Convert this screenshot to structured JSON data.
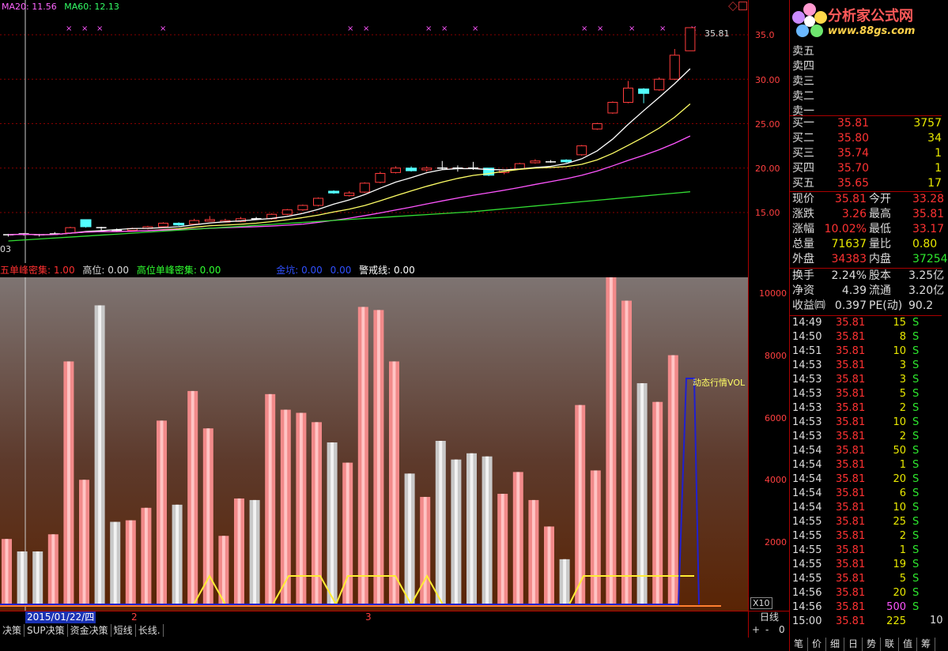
{
  "main_chart": {
    "ma_labels": [
      {
        "text": "MA20: 11.56",
        "color": "#ff66ff"
      },
      {
        "text": "MA60: 12.13",
        "color": "#33ff66"
      }
    ],
    "last_price_label": "35.81",
    "left_edge_label": "03",
    "price_axis": [
      "35.0",
      "30.00",
      "25.00",
      "20.00",
      "15.00"
    ],
    "marker_glyph": "×"
  },
  "indicator_header": [
    {
      "text": "五单峰密集: 1.00",
      "color": "#ff3030"
    },
    {
      "text": "高位: 0.00",
      "color": "#dddddd"
    },
    {
      "text": "高位单峰密集: 0.00",
      "color": "#30ff30"
    },
    {
      "text": "金坑: 0.00",
      "color": "#3050ff"
    },
    {
      "text": "0.00",
      "color": "#3050ff"
    },
    {
      "text": "警戒线: 0.00",
      "color": "#ffffff"
    }
  ],
  "volume_chart": {
    "label": "动态行情VOL",
    "axis": [
      "10000",
      "8000",
      "6000",
      "4000",
      "2000"
    ],
    "multiplier": "X10"
  },
  "chart_data": {
    "type": "bar",
    "title": "动态行情VOL",
    "ylim": [
      0,
      10500
    ],
    "values": [
      2100,
      1700,
      1700,
      2250,
      7800,
      4000,
      9600,
      2650,
      2700,
      3100,
      5900,
      3200,
      6850,
      5650,
      2200,
      3400,
      3350,
      6750,
      6250,
      6150,
      5850,
      5200,
      4550,
      9550,
      9450,
      7800,
      4200,
      3450,
      5250,
      4650,
      4850,
      4750,
      3550,
      4250,
      3350,
      2500,
      1450,
      6400,
      4300,
      10500,
      9750,
      7100,
      6500,
      8000
    ],
    "colors_by_index": [
      "red",
      "white",
      "white",
      "red",
      "red",
      "red",
      "white",
      "white",
      "red",
      "red",
      "red",
      "white",
      "red",
      "red",
      "red",
      "red",
      "white",
      "red",
      "red",
      "red",
      "red",
      "white",
      "red",
      "red",
      "red",
      "red",
      "white",
      "red",
      "white",
      "white",
      "white",
      "white",
      "red",
      "red",
      "red",
      "red",
      "white",
      "red",
      "red",
      "red",
      "red",
      "white",
      "red",
      "red"
    ]
  },
  "date_bar": {
    "date": "2015/01/22/四",
    "ticks": [
      "2",
      "3"
    ],
    "period": "日线"
  },
  "tabs": [
    "决策",
    "SUP决策",
    "资金决策",
    "短线",
    "长线."
  ],
  "zoom_controls": [
    "+",
    "-",
    "0"
  ],
  "logo": {
    "name": "分析家公式网",
    "url": "www.88gs.com"
  },
  "order_book": {
    "sells": [
      "卖五",
      "卖四",
      "卖三",
      "卖二",
      "卖一"
    ],
    "buys": [
      {
        "label": "买一",
        "price": "35.81",
        "volume": "3757"
      },
      {
        "label": "买二",
        "price": "35.80",
        "volume": "34"
      },
      {
        "label": "买三",
        "price": "35.74",
        "volume": "1"
      },
      {
        "label": "买四",
        "price": "35.70",
        "volume": "1"
      },
      {
        "label": "买五",
        "price": "35.65",
        "volume": "17"
      }
    ]
  },
  "quote": [
    {
      "l1": "现价",
      "v1": "35.81",
      "c1": "red",
      "l2": "今开",
      "v2": "33.28",
      "c2": "red"
    },
    {
      "l1": "涨跌",
      "v1": "3.26",
      "c1": "red",
      "l2": "最高",
      "v2": "35.81",
      "c2": "red"
    },
    {
      "l1": "涨幅",
      "v1": "10.02%",
      "c1": "red",
      "l2": "最低",
      "v2": "33.17",
      "c2": "red"
    },
    {
      "l1": "总量",
      "v1": "71637",
      "c1": "yel",
      "l2": "量比",
      "v2": "0.80",
      "c2": "yel"
    },
    {
      "l1": "外盘",
      "v1": "34383",
      "c1": "red",
      "l2": "内盘",
      "v2": "37254",
      "c2": "grn"
    }
  ],
  "fundamentals": [
    {
      "l1": "换手",
      "v1": "2.24%",
      "l2": "股本",
      "v2": "3.25亿"
    },
    {
      "l1": "净资",
      "v1": "4.39",
      "l2": "流通",
      "v2": "3.20亿"
    },
    {
      "l1": "收益㈣",
      "v1": "0.397",
      "l2": "PE(动)",
      "v2": "90.2"
    }
  ],
  "ticks": [
    {
      "time": "14:49",
      "price": "35.81",
      "vol": "15",
      "side": "S",
      "big": false
    },
    {
      "time": "14:50",
      "price": "35.81",
      "vol": "8",
      "side": "S",
      "big": false
    },
    {
      "time": "14:51",
      "price": "35.81",
      "vol": "10",
      "side": "S",
      "big": false
    },
    {
      "time": "14:53",
      "price": "35.81",
      "vol": "3",
      "side": "S",
      "big": false
    },
    {
      "time": "14:53",
      "price": "35.81",
      "vol": "3",
      "side": "S",
      "big": false
    },
    {
      "time": "14:53",
      "price": "35.81",
      "vol": "5",
      "side": "S",
      "big": false
    },
    {
      "time": "14:53",
      "price": "35.81",
      "vol": "2",
      "side": "S",
      "big": false
    },
    {
      "time": "14:53",
      "price": "35.81",
      "vol": "10",
      "side": "S",
      "big": false
    },
    {
      "time": "14:53",
      "price": "35.81",
      "vol": "2",
      "side": "S",
      "big": false
    },
    {
      "time": "14:54",
      "price": "35.81",
      "vol": "50",
      "side": "S",
      "big": false
    },
    {
      "time": "14:54",
      "price": "35.81",
      "vol": "1",
      "side": "S",
      "big": false
    },
    {
      "time": "14:54",
      "price": "35.81",
      "vol": "20",
      "side": "S",
      "big": false
    },
    {
      "time": "14:54",
      "price": "35.81",
      "vol": "6",
      "side": "S",
      "big": false
    },
    {
      "time": "14:54",
      "price": "35.81",
      "vol": "10",
      "side": "S",
      "big": false
    },
    {
      "time": "14:55",
      "price": "35.81",
      "vol": "25",
      "side": "S",
      "big": false
    },
    {
      "time": "14:55",
      "price": "35.81",
      "vol": "2",
      "side": "S",
      "big": false
    },
    {
      "time": "14:55",
      "price": "35.81",
      "vol": "1",
      "side": "S",
      "big": false
    },
    {
      "time": "14:55",
      "price": "35.81",
      "vol": "19",
      "side": "S",
      "big": false
    },
    {
      "time": "14:55",
      "price": "35.81",
      "vol": "5",
      "side": "S",
      "big": false
    },
    {
      "time": "14:56",
      "price": "35.81",
      "vol": "20",
      "side": "S",
      "big": false
    },
    {
      "time": "14:56",
      "price": "35.81",
      "vol": "500",
      "side": "S",
      "big": true
    },
    {
      "time": "15:00",
      "price": "35.81",
      "vol": "225",
      "side": "",
      "big": false
    }
  ],
  "tick_extra": "10",
  "right_tabs": [
    "笔",
    "价",
    "细",
    "日",
    "势",
    "联",
    "值",
    "筹"
  ]
}
